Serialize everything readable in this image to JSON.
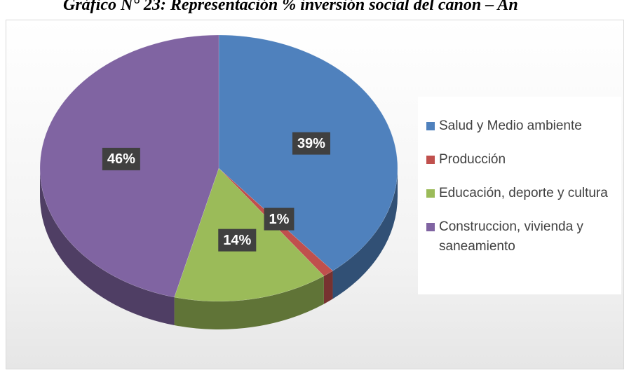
{
  "chart_data": {
    "type": "pie",
    "title": "Gráfico N° 23: Representación % inversión social del canon – An",
    "categories": [
      "Salud y Medio ambiente",
      "Producción",
      "Educación, deporte y cultura",
      "Construccion, vivienda y saneamiento"
    ],
    "values": [
      39,
      1,
      14,
      46
    ],
    "value_labels": [
      "39%",
      "1%",
      "14%",
      "46%"
    ],
    "colors": [
      "#4f81bd",
      "#c0504d",
      "#9bbb59",
      "#8064a2"
    ],
    "legend": "right"
  }
}
